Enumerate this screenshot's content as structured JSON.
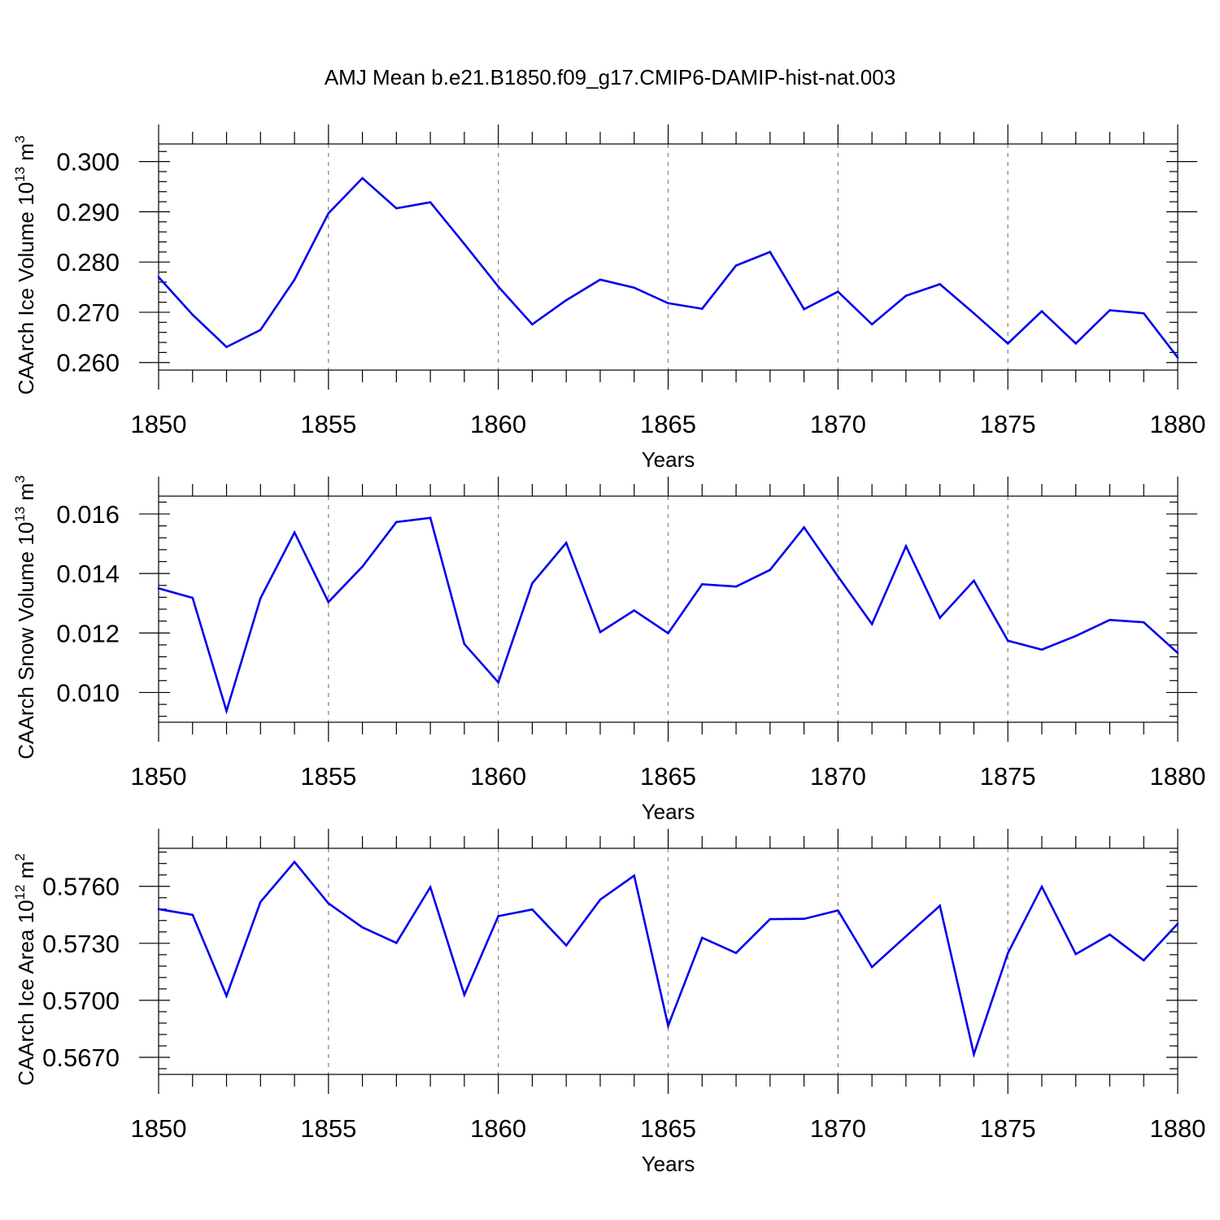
{
  "title": "AMJ Mean b.e21.B1850.f09_g17.CMIP6-DAMIP-hist-nat.003",
  "colors": {
    "line": "#0000ee",
    "grid": "#8a8a8a",
    "axis": "#000000"
  },
  "chart_data": [
    {
      "type": "line",
      "ylabel_main": "CAArch Ice Volume 10",
      "ylabel_exp": "13",
      "ylabel_unit": " m",
      "ylabel_unit_exp": "3",
      "xlabel": "Years",
      "xlim": [
        1850,
        1880
      ],
      "ylim": [
        0.2585,
        0.3035
      ],
      "x_major_ticks": [
        1850,
        1855,
        1860,
        1865,
        1870,
        1875,
        1880
      ],
      "x_tick_labels": [
        "1850",
        "1855",
        "1860",
        "1865",
        "1870",
        "1875",
        "1880"
      ],
      "y_major_ticks": [
        0.26,
        0.27,
        0.28,
        0.29,
        0.3
      ],
      "y_tick_labels": [
        "0.260",
        "0.270",
        "0.280",
        "0.290",
        "0.300"
      ],
      "y_minor_step": 0.002,
      "x": [
        1850,
        1851,
        1852,
        1853,
        1854,
        1855,
        1856,
        1857,
        1858,
        1859,
        1860,
        1861,
        1862,
        1863,
        1864,
        1865,
        1866,
        1867,
        1868,
        1869,
        1870,
        1871,
        1872,
        1873,
        1874,
        1875,
        1876,
        1877,
        1878,
        1879,
        1880
      ],
      "values": [
        0.277,
        0.2695,
        0.2631,
        0.2665,
        0.2765,
        0.2897,
        0.2967,
        0.2907,
        0.2919,
        0.2836,
        0.2751,
        0.2676,
        0.2724,
        0.2765,
        0.2749,
        0.2718,
        0.2707,
        0.2793,
        0.282,
        0.2706,
        0.2741,
        0.2676,
        0.2733,
        0.2756,
        0.2698,
        0.2638,
        0.2702,
        0.2638,
        0.2704,
        0.2698,
        0.261
      ]
    },
    {
      "type": "line",
      "ylabel_main": "CAArch Snow Volume 10",
      "ylabel_exp": "13",
      "ylabel_unit": " m",
      "ylabel_unit_exp": "3",
      "xlabel": "Years",
      "xlim": [
        1850,
        1880
      ],
      "ylim": [
        0.009,
        0.0166
      ],
      "x_major_ticks": [
        1850,
        1855,
        1860,
        1865,
        1870,
        1875,
        1880
      ],
      "x_tick_labels": [
        "1850",
        "1855",
        "1860",
        "1865",
        "1870",
        "1875",
        "1880"
      ],
      "y_major_ticks": [
        0.01,
        0.012,
        0.014,
        0.016
      ],
      "y_tick_labels": [
        "0.010",
        "0.012",
        "0.014",
        "0.016"
      ],
      "y_minor_step": 0.0004,
      "x": [
        1850,
        1851,
        1852,
        1853,
        1854,
        1855,
        1856,
        1857,
        1858,
        1859,
        1860,
        1861,
        1862,
        1863,
        1864,
        1865,
        1866,
        1867,
        1868,
        1869,
        1870,
        1871,
        1872,
        1873,
        1874,
        1875,
        1876,
        1877,
        1878,
        1879,
        1880
      ],
      "values": [
        0.0135,
        0.01318,
        0.00938,
        0.01317,
        0.01538,
        0.01304,
        0.01423,
        0.01573,
        0.01587,
        0.01163,
        0.01034,
        0.01367,
        0.01503,
        0.01203,
        0.01276,
        0.01199,
        0.01364,
        0.01356,
        0.01412,
        0.01555,
        0.0139,
        0.0123,
        0.01492,
        0.01251,
        0.01376,
        0.01174,
        0.01144,
        0.0119,
        0.01244,
        0.01236,
        0.01133
      ]
    },
    {
      "type": "line",
      "ylabel_main": "CAArch Ice Area 10",
      "ylabel_exp": "12",
      "ylabel_unit": " m",
      "ylabel_unit_exp": "2",
      "xlabel": "Years",
      "xlim": [
        1850,
        1880
      ],
      "ylim": [
        0.5661,
        0.578
      ],
      "x_major_ticks": [
        1850,
        1855,
        1860,
        1865,
        1870,
        1875,
        1880
      ],
      "x_tick_labels": [
        "1850",
        "1855",
        "1860",
        "1865",
        "1870",
        "1875",
        "1880"
      ],
      "y_major_ticks": [
        0.567,
        0.57,
        0.573,
        0.576
      ],
      "y_tick_labels": [
        "0.5670",
        "0.5700",
        "0.5730",
        "0.5760"
      ],
      "y_minor_step": 0.0006,
      "x": [
        1850,
        1851,
        1852,
        1853,
        1854,
        1855,
        1856,
        1857,
        1858,
        1859,
        1860,
        1861,
        1862,
        1863,
        1864,
        1865,
        1866,
        1867,
        1868,
        1869,
        1870,
        1871,
        1872,
        1873,
        1874,
        1875,
        1876,
        1877,
        1878,
        1879,
        1880
      ],
      "values": [
        0.5748,
        0.5745,
        0.57023,
        0.57518,
        0.57728,
        0.5751,
        0.57384,
        0.57302,
        0.57596,
        0.57029,
        0.57443,
        0.57478,
        0.57289,
        0.5753,
        0.57656,
        0.56866,
        0.57329,
        0.57249,
        0.57427,
        0.57429,
        0.57473,
        0.57175,
        0.57337,
        0.57498,
        0.56716,
        0.57248,
        0.57598,
        0.57243,
        0.57346,
        0.5721,
        0.57403
      ]
    }
  ]
}
